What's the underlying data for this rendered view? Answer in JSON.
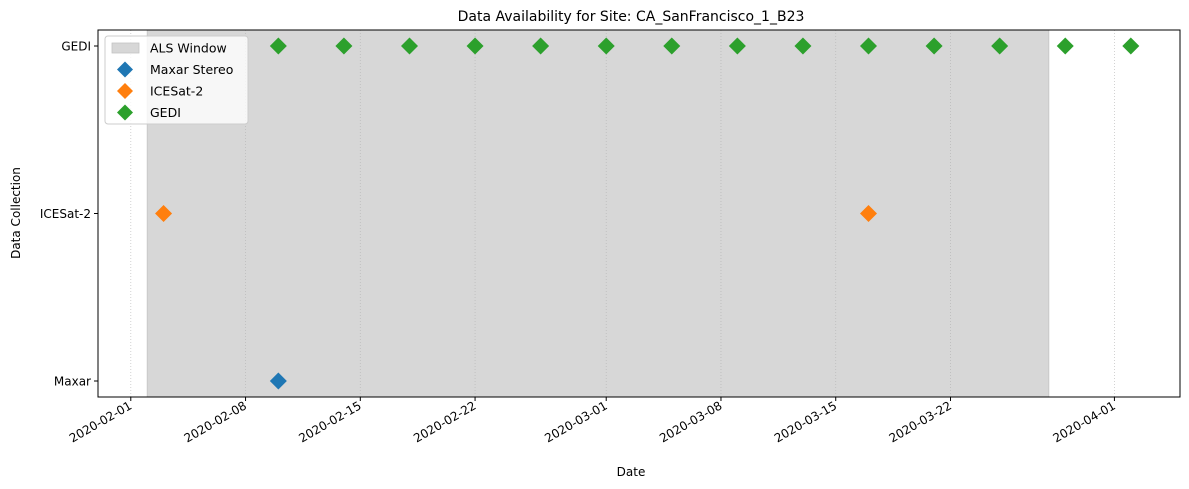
{
  "chart_data": {
    "type": "scatter",
    "title": "Data Availability for Site: CA_SanFrancisco_1_B23",
    "xlabel": "Date",
    "ylabel": "Data Collection",
    "x_axis_type": "date",
    "xlim": [
      "2020-01-30",
      "2020-04-05"
    ],
    "x_ticks": [
      "2020-02-01",
      "2020-02-08",
      "2020-02-15",
      "2020-02-22",
      "2020-03-01",
      "2020-03-08",
      "2020-03-15",
      "2020-03-22",
      "2020-04-01"
    ],
    "y_categories": [
      "Maxar",
      "ICESat-2",
      "GEDI"
    ],
    "grid": "x-dotted",
    "legend_position": "upper left",
    "shaded_window": {
      "name": "ALS Window",
      "start": "2020-02-02",
      "end": "2020-03-28",
      "color": "#d7d7d7"
    },
    "series": [
      {
        "name": "Maxar Stereo",
        "category": "Maxar",
        "color": "#1f77b4",
        "dates": [
          "2020-02-10"
        ]
      },
      {
        "name": "ICESat-2",
        "category": "ICESat-2",
        "color": "#ff7f0e",
        "dates": [
          "2020-02-03",
          "2020-03-17"
        ]
      },
      {
        "name": "GEDI",
        "category": "GEDI",
        "color": "#2ca02c",
        "dates": [
          "2020-02-10",
          "2020-02-14",
          "2020-02-18",
          "2020-02-22",
          "2020-02-26",
          "2020-03-01",
          "2020-03-05",
          "2020-03-09",
          "2020-03-13",
          "2020-03-17",
          "2020-03-21",
          "2020-03-25",
          "2020-03-29",
          "2020-04-02"
        ]
      }
    ]
  }
}
